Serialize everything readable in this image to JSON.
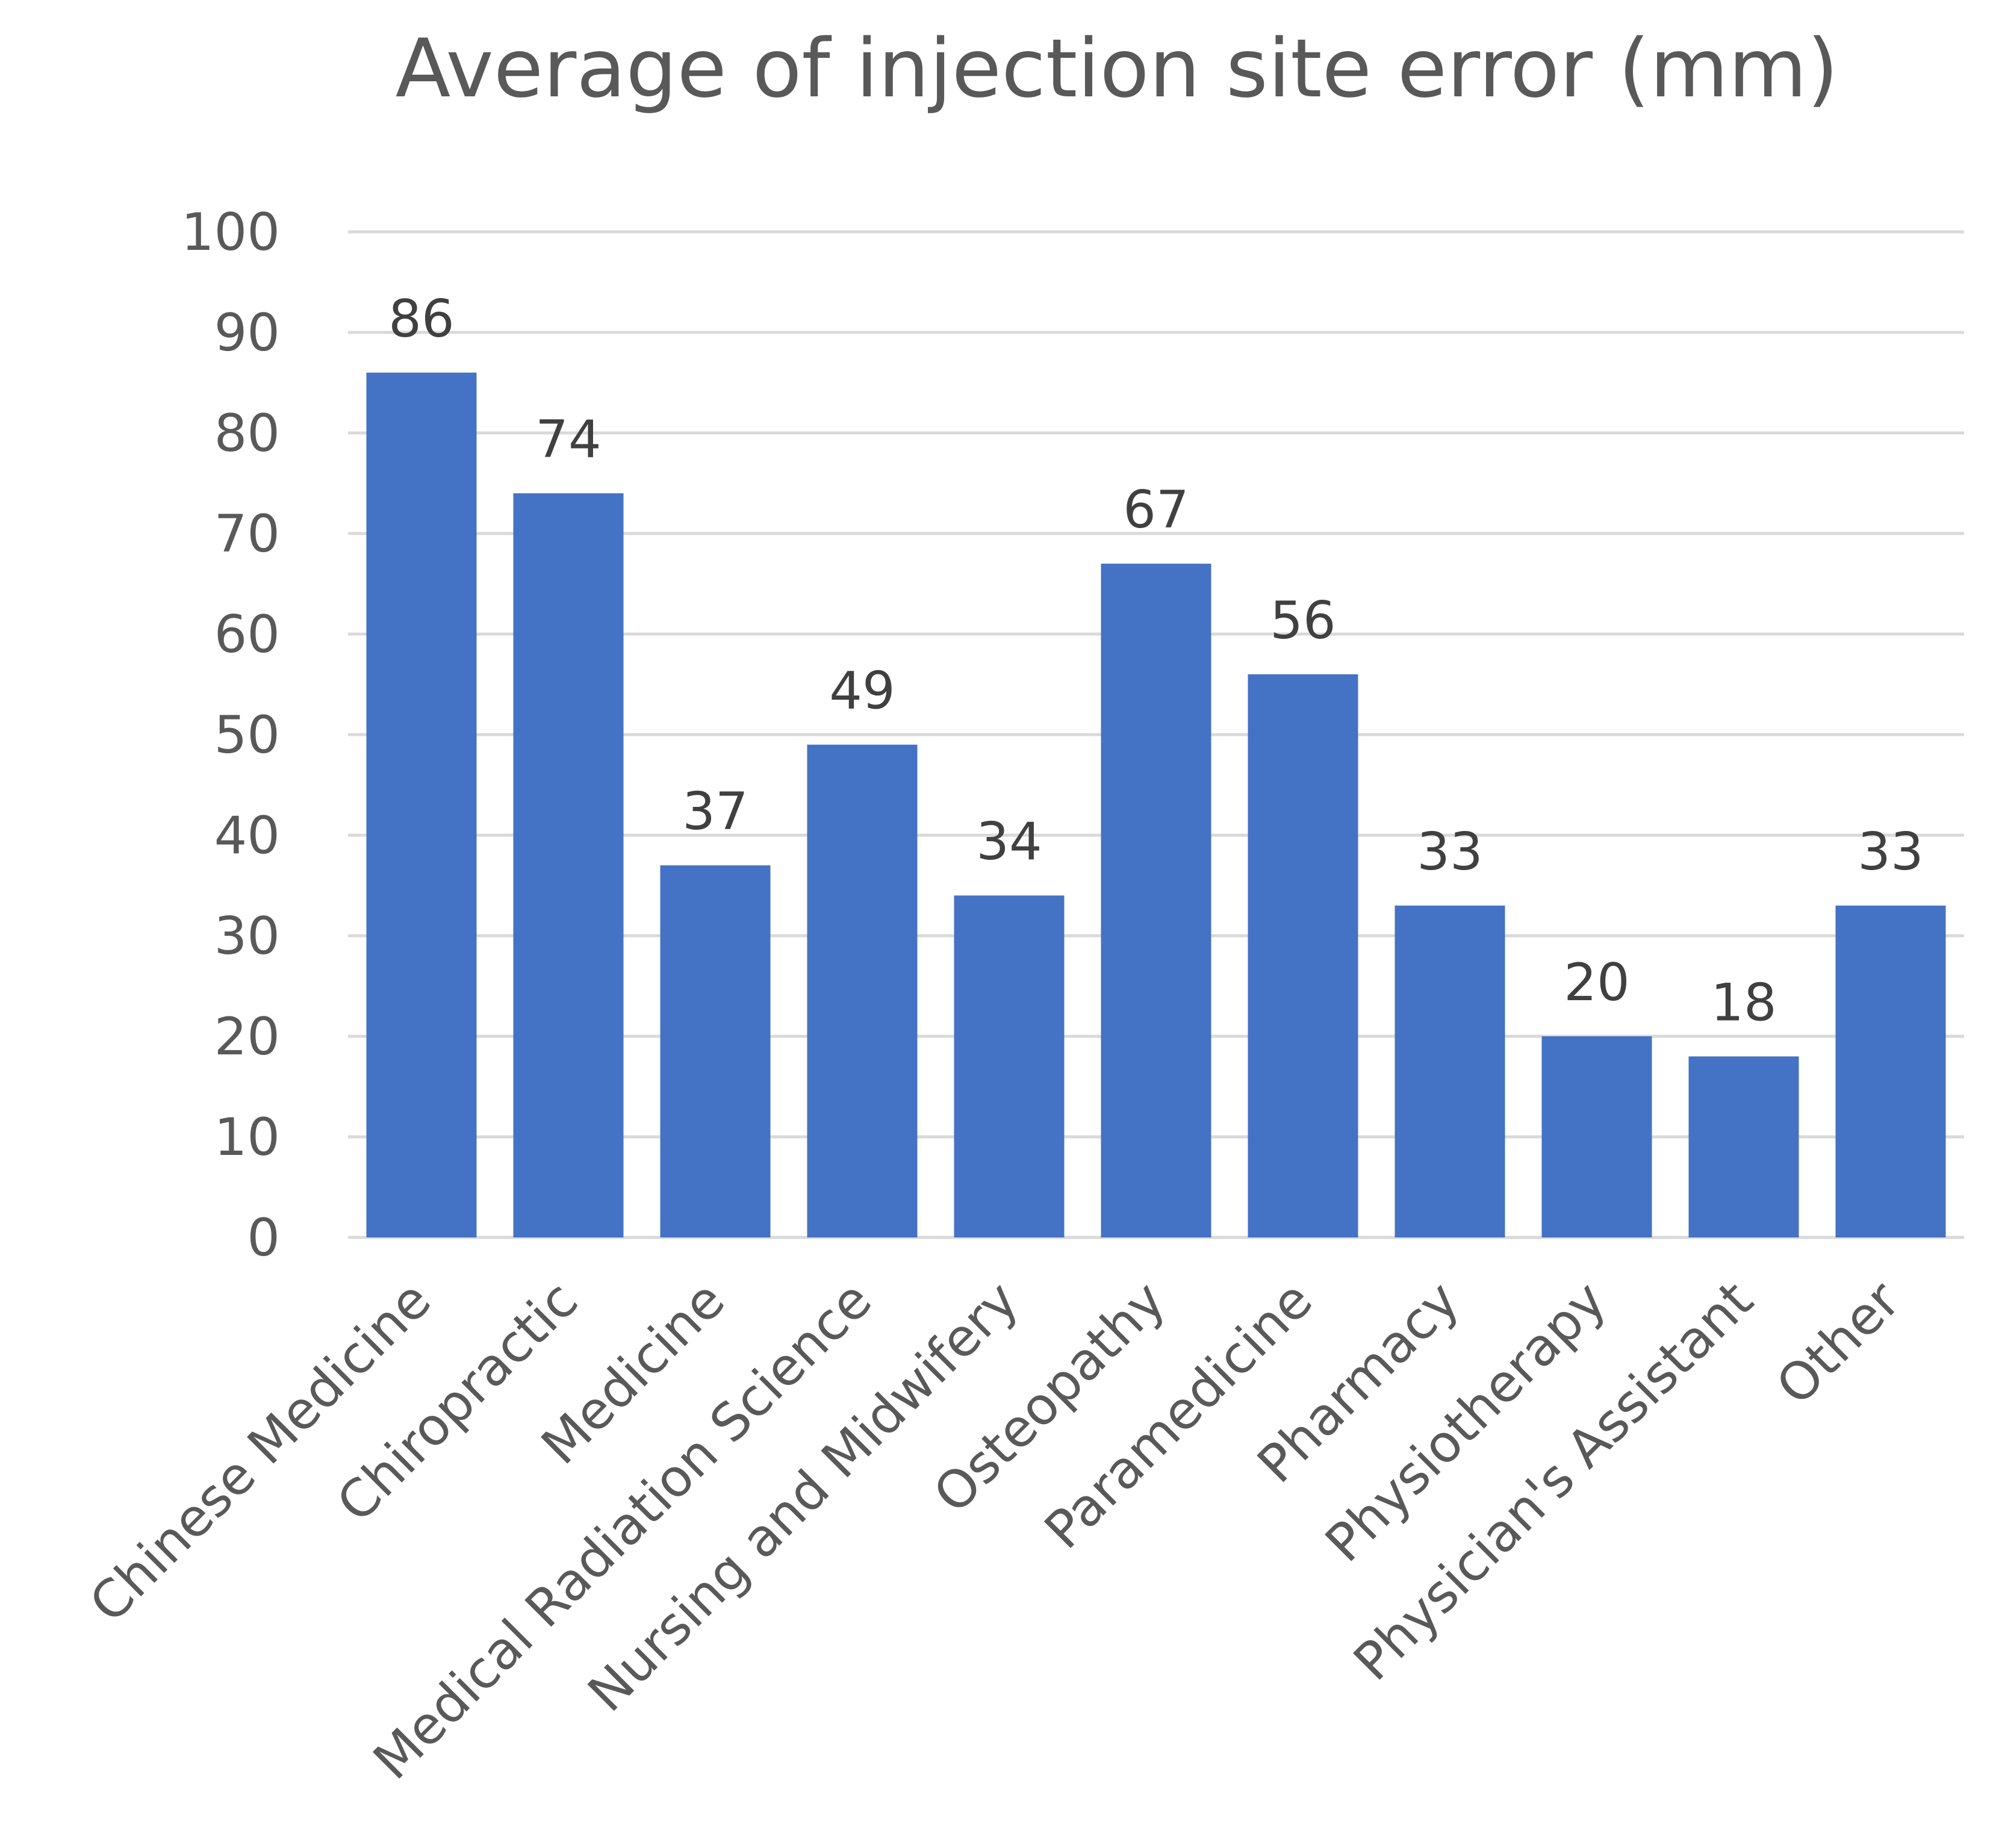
{
  "chart_data": {
    "type": "bar",
    "title": "Average of injection site error (mm)",
    "xlabel": "",
    "ylabel": "",
    "ylim": [
      0,
      100
    ],
    "ytick_step": 10,
    "yticks": [
      "0",
      "10",
      "20",
      "30",
      "40",
      "50",
      "60",
      "70",
      "80",
      "90",
      "100"
    ],
    "grid": true,
    "legend": "none",
    "categories": [
      "Chinese Medicine",
      "Chiropractic",
      "Medicine",
      "Medical Radiation Science",
      "Nursing and Midwifery",
      "Osteopathy",
      "Paramedicine",
      "Pharmacy",
      "Physiotherapy",
      "Physician's Assistant",
      "Other"
    ],
    "series": [
      {
        "name": "Average of injection site error (mm)",
        "values": [
          86,
          74,
          37,
          49,
          34,
          67,
          56,
          33,
          20,
          18,
          33
        ],
        "color": "#4472c4"
      }
    ],
    "data_labels": [
      "86",
      "74",
      "37",
      "49",
      "34",
      "67",
      "56",
      "33",
      "20",
      "18",
      "33"
    ]
  },
  "colors": {
    "bar": "#4472c4",
    "grid": "#d9d9d9",
    "text": "#595959",
    "data_label": "#404040"
  }
}
